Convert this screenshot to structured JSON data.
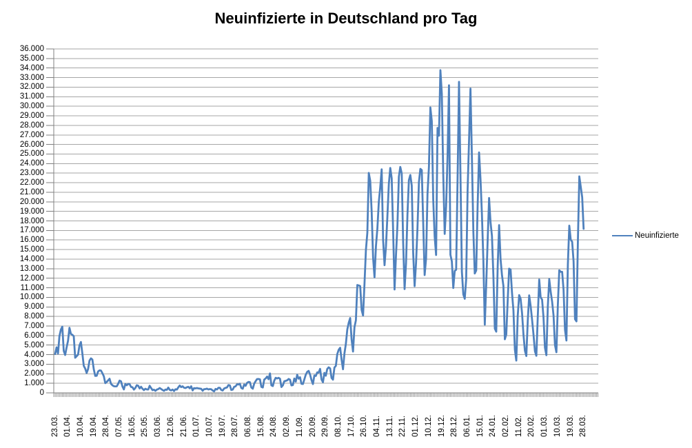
{
  "title": "Neuinfizierte in Deutschland pro Tag",
  "legend": {
    "label": "Neuinfizierte"
  },
  "colors": {
    "series": "#4F81BD",
    "gridline": "#A6A6A6",
    "axis": "#7F7F7F",
    "text": "#000000",
    "background": "#FFFFFF"
  },
  "chart_data": {
    "type": "line",
    "title": "Neuinfizierte in Deutschland pro Tag",
    "xlabel": "",
    "ylabel": "",
    "grid": true,
    "legend_position": "right",
    "y_axis": {
      "min": 0,
      "max": 36000,
      "step": 1000
    },
    "y_tick_labels": [
      "0",
      "1.000",
      "2.000",
      "3.000",
      "4.000",
      "5.000",
      "6.000",
      "7.000",
      "8.000",
      "9.000",
      "10.000",
      "11.000",
      "12.000",
      "13.000",
      "14.000",
      "15.000",
      "16.000",
      "17.000",
      "18.000",
      "19.000",
      "20.000",
      "21.000",
      "22.000",
      "23.000",
      "24.000",
      "25.000",
      "26.000",
      "27.000",
      "28.000",
      "29.000",
      "30.000",
      "31.000",
      "32.000",
      "33.000",
      "34.000",
      "35.000",
      "36.000"
    ],
    "x_tick_labels": [
      "23.03.",
      "01.04.",
      "10.04.",
      "19.04.",
      "28.04.",
      "07.05.",
      "16.05.",
      "25.05.",
      "03.06.",
      "12.06.",
      "21.06.",
      "01.07.",
      "10.07.",
      "19.07.",
      "28.07.",
      "06.08.",
      "15.08.",
      "24.08.",
      "02.09.",
      "11.09.",
      "20.09.",
      "29.09.",
      "08.10.",
      "17.10.",
      "26.10.",
      "04.11.",
      "13.11.",
      "22.11.",
      "01.12.",
      "10.12.",
      "19.12.",
      "28.12.",
      "06.01.",
      "15.01.",
      "24.01.",
      "02.02.",
      "11.02.",
      "20.02.",
      "01.03.",
      "10.03.",
      "19.03.",
      "28.03."
    ],
    "x_tick_interval_points": 9,
    "series": [
      {
        "name": "Neuinfizierte",
        "values": [
          4062,
          4764,
          4118,
          5940,
          6615,
          6933,
          4400,
          3965,
          4751,
          5453,
          6813,
          6174,
          6082,
          5936,
          3677,
          3834,
          4003,
          4974,
          5323,
          4133,
          2821,
          2537,
          2082,
          2486,
          3380,
          3609,
          3481,
          2458,
          1775,
          1785,
          2237,
          2352,
          2337,
          2055,
          1737,
          1018,
          1144,
          1304,
          1478,
          945,
          793,
          697,
          679,
          685,
          947,
          1284,
          1209,
          667,
          357,
          933,
          798,
          933,
          913,
          620,
          583,
          342,
          513,
          797,
          745,
          460,
          638,
          431,
          289,
          432,
          362,
          353,
          741,
          507,
          286,
          333,
          213,
          342,
          394,
          507,
          407,
          301,
          214,
          350,
          318,
          555,
          318,
          258,
          348,
          192,
          378,
          345,
          580,
          770,
          601,
          687,
          537,
          503,
          587,
          630,
          477,
          687,
          256,
          498,
          466,
          503,
          466,
          446,
          422,
          219,
          390,
          397,
          442,
          356,
          395,
          378,
          248,
          159,
          412,
          351,
          534,
          529,
          305,
          249,
          454,
          522,
          569,
          815,
          781,
          305,
          340,
          633,
          684,
          902,
          870,
          955,
          509,
          436,
          879,
          741,
          1045,
          1147,
          1122,
          555,
          436,
          966,
          1226,
          1445,
          1449,
          1415,
          625,
          561,
          1390,
          1510,
          1707,
          1427,
          2034,
          782,
          711,
          1278,
          1576,
          1507,
          1571,
          1479,
          610,
          785,
          1218,
          1256,
          1311,
          1453,
          1378,
          782,
          814,
          1499,
          1176,
          1892,
          1484,
          1630,
          948,
          927,
          1407,
          1901,
          2194,
          2297,
          1916,
          1345,
          922,
          1821,
          1769,
          2143,
          2126,
          2507,
          1411,
          1111,
          2089,
          1798,
          2503,
          2673,
          2563,
          1563,
          1382,
          2639,
          2828,
          4058,
          4516,
          4721,
          3483,
          2467,
          4122,
          5132,
          6638,
          7334,
          7830,
          5587,
          4325,
          6868,
          7595,
          11287,
          11242,
          11176,
          8685,
          8100,
          11409,
          14964,
          16774,
          23020,
          22200,
          19000,
          14177,
          12097,
          15352,
          17214,
          19990,
          21506,
          23399,
          16017,
          13363,
          15332,
          18487,
          21866,
          23542,
          22461,
          16947,
          10824,
          14419,
          17561,
          22609,
          23648,
          22964,
          15741,
          10864,
          13554,
          18633,
          22268,
          22806,
          21695,
          14611,
          11169,
          13604,
          17270,
          22046,
          23449,
          23318,
          17767,
          12332,
          14054,
          20815,
          23679,
          29875,
          28438,
          20200,
          16362,
          14432,
          27728,
          26923,
          33777,
          31300,
          22771,
          16643,
          19528,
          24740,
          32195,
          14455,
          13755,
          10976,
          12760,
          12892,
          22459,
          32552,
          22924,
          12690,
          10315,
          9847,
          11897,
          21237,
          26391,
          31849,
          24694,
          16946,
          12497,
          12802,
          19600,
          25164,
          22368,
          18678,
          13882,
          7141,
          11369,
          15974,
          20398,
          17862,
          16417,
          12257,
          6729,
          6408,
          13202,
          17553,
          14022,
          12321,
          11192,
          5608,
          6114,
          9705,
          13000,
          12908,
          10485,
          8616,
          4535,
          3379,
          8072,
          10237,
          9860,
          8354,
          6114,
          4426,
          3856,
          7556,
          10207,
          9113,
          7676,
          6114,
          4369,
          3883,
          8007,
          11869,
          9997,
          9762,
          7890,
          4732,
          3943,
          9019,
          11912,
          10580,
          9557,
          8103,
          5011,
          4252,
          9146,
          12834,
          12674,
          12670,
          10790,
          6604,
          5480,
          13435,
          17504,
          16033,
          15813,
          13733,
          7709,
          7485,
          15813,
          22657,
          21573,
          20472,
          17176
        ]
      }
    ]
  }
}
